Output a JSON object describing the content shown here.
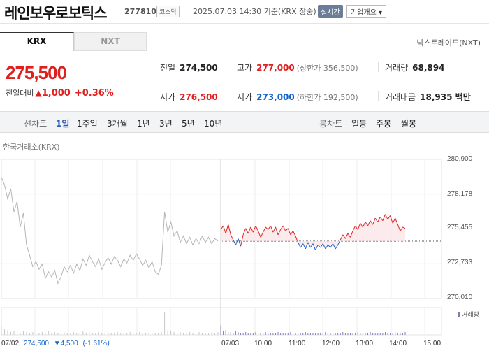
{
  "header": {
    "name": "레인보우로보틱스",
    "code": "277810",
    "market": "코스닥",
    "datetime": "2025.07.03 14:30 기준(KRX 장중)",
    "realtime": "실시간",
    "overview": "기업개요 ▾"
  },
  "tabs": {
    "krx": "KRX",
    "nxt": "NXT",
    "nextrade": "넥스트레이드(NXT)"
  },
  "price": {
    "current": "275,500",
    "change_label": "전일대비",
    "change_arrow": "▲",
    "change_amount": "1,000",
    "change_pct": "+0.36%"
  },
  "stats": {
    "prev": {
      "label": "전일",
      "value": "274,500"
    },
    "high": {
      "label": "고가",
      "value": "277,000",
      "sub": "(상한가 356,500)"
    },
    "volume": {
      "label": "거래량",
      "value": "68,894"
    },
    "open": {
      "label": "시가",
      "value": "276,500"
    },
    "low": {
      "label": "저가",
      "value": "273,000",
      "sub": "(하한가 192,500)"
    },
    "amount": {
      "label": "거래대금",
      "value": "18,935 백만"
    }
  },
  "period_bar": {
    "line_label": "선차트",
    "line_periods": [
      "1일",
      "1주일",
      "3개월",
      "1년",
      "3년",
      "5년",
      "10년"
    ],
    "selected": "1일",
    "candle_label": "봉차트",
    "candle_periods": [
      "일봉",
      "주봉",
      "월봉"
    ]
  },
  "chart_data": {
    "type": "line",
    "source": "한국거래소(KRX)",
    "y_ticks": [
      "280,900",
      "278,178",
      "275,455",
      "272,733",
      "270,010"
    ],
    "ylim": [
      270010,
      280900
    ],
    "x_ticks": [
      "07/03",
      "10:00",
      "11:00",
      "12:00",
      "13:00",
      "14:00",
      "15:00"
    ],
    "reference_price": 274500,
    "prev_day": {
      "date": "07/02",
      "close": "274,500",
      "change": "▼4,500",
      "change_pct": "(-1.61%)"
    },
    "volume_legend": "거래량",
    "colors": {
      "up": "#e02424",
      "down": "#1a63c9",
      "prev": "#b5b5b5",
      "volume": "#8a7ab5"
    },
    "prev_day_series": [
      279500,
      278900,
      277800,
      278600,
      276800,
      277600,
      275600,
      276700,
      274200,
      273400,
      272500,
      272900,
      272300,
      272700,
      271600,
      272100,
      271700,
      272200,
      271200,
      271700,
      272500,
      272100,
      272600,
      272000,
      272700,
      272200,
      273100,
      272600,
      273400,
      272900,
      272500,
      273100,
      272300,
      272800,
      273200,
      272700,
      273300,
      273000,
      272500,
      273100,
      272800,
      273400,
      273000,
      273500,
      273100,
      272600,
      273000,
      272400,
      272900,
      272100,
      271900,
      272600,
      276800,
      275200,
      276000,
      274900,
      275300,
      274400,
      274900,
      274300,
      274800,
      274200,
      274700,
      274300,
      274900,
      274400,
      274800,
      274300,
      274700,
      274500
    ],
    "today_series": [
      275400,
      275700,
      275100,
      275800,
      275000,
      274600,
      274200,
      274700,
      274100,
      275000,
      275500,
      275100,
      275600,
      275200,
      275700,
      275300,
      274800,
      275200,
      275600,
      275400,
      275700,
      275200,
      275600,
      275000,
      275400,
      275700,
      275300,
      275500,
      275000,
      275300,
      274900,
      274400,
      274000,
      274300,
      273900,
      274400,
      274000,
      274300,
      273800,
      274200,
      274000,
      274300,
      273900,
      274200,
      274000,
      274300,
      273900,
      274200,
      274600,
      275000,
      274700,
      275100,
      274800,
      275300,
      275700,
      275400,
      275900,
      275600,
      276000,
      275700,
      276100,
      275800,
      276300,
      276000,
      276400,
      276100,
      276600,
      276200,
      276500,
      275900,
      276300,
      275800,
      275300,
      275600,
      275500
    ],
    "volume_prev": [
      9,
      6,
      5,
      3,
      4,
      3,
      2,
      4,
      3,
      2,
      3,
      2,
      2,
      3,
      2,
      4,
      2,
      3,
      2,
      2,
      3,
      2,
      2,
      3,
      2,
      2,
      4,
      2,
      3,
      2,
      2,
      3,
      2,
      2,
      3,
      2,
      2,
      3,
      2,
      2,
      2,
      3,
      2,
      2,
      3,
      2,
      2,
      3,
      2,
      2,
      2,
      3,
      24,
      5,
      4,
      3,
      2,
      3,
      2,
      2,
      3,
      2,
      2,
      3,
      2,
      2,
      2,
      3,
      2,
      3
    ],
    "volume_today": [
      10,
      4,
      5,
      3,
      3,
      2,
      4,
      3,
      2,
      2,
      3,
      2,
      2,
      2,
      3,
      2,
      2,
      2,
      3,
      2,
      2,
      2,
      2,
      3,
      2,
      2,
      2,
      2,
      3,
      2,
      2,
      2,
      2,
      2,
      3,
      2,
      2,
      2,
      2,
      2,
      2,
      2,
      3,
      2,
      2,
      2,
      2,
      2,
      2,
      3,
      2,
      2,
      2,
      2,
      2,
      3,
      2,
      2,
      2,
      2,
      3,
      2,
      2,
      2,
      2,
      2,
      3,
      2,
      2,
      2,
      3,
      2,
      2,
      2,
      3
    ]
  }
}
